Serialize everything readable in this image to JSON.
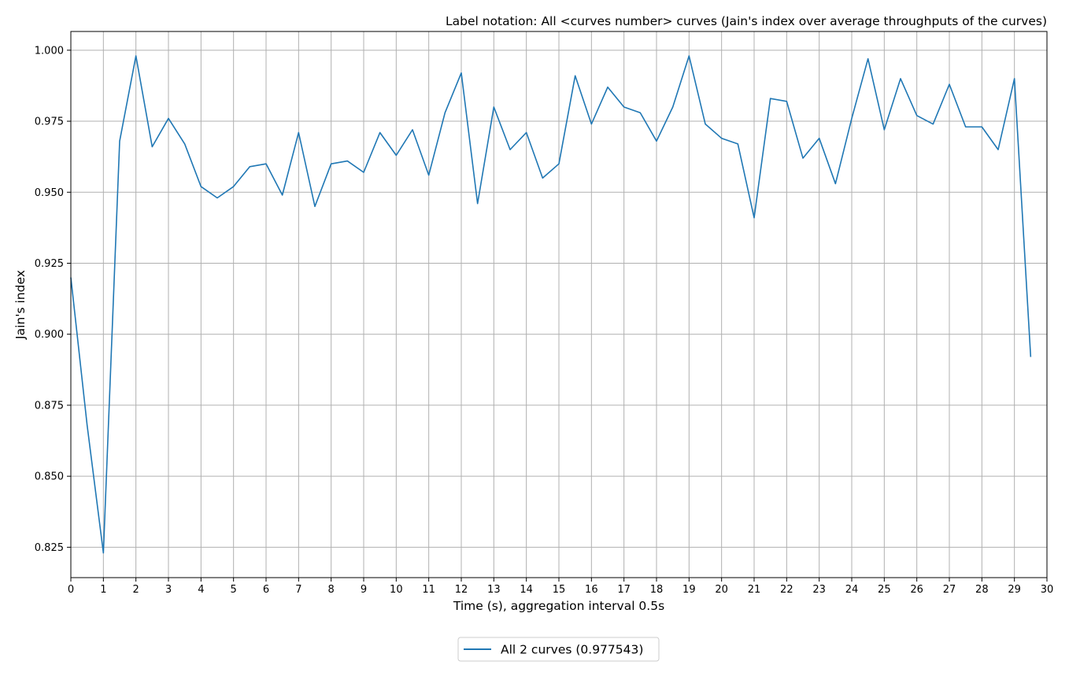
{
  "chart_data": {
    "type": "line",
    "title": "Label notation: All <curves number> curves (Jain's index over average throughputs of the curves)",
    "xlabel": "Time (s), aggregation interval 0.5s",
    "ylabel": "Jain's index",
    "xlim": [
      0,
      30
    ],
    "ylim": [
      0.8143,
      1.0066
    ],
    "x_ticks": [
      0,
      1,
      2,
      3,
      4,
      5,
      6,
      7,
      8,
      9,
      10,
      11,
      12,
      13,
      14,
      15,
      16,
      17,
      18,
      19,
      20,
      21,
      22,
      23,
      24,
      25,
      26,
      27,
      28,
      29,
      30
    ],
    "x_tick_labels": [
      "0",
      "1",
      "2",
      "3",
      "4",
      "5",
      "6",
      "7",
      "8",
      "9",
      "10",
      "11",
      "12",
      "13",
      "14",
      "15",
      "16",
      "17",
      "18",
      "19",
      "20",
      "21",
      "22",
      "23",
      "24",
      "25",
      "26",
      "27",
      "28",
      "29",
      "30"
    ],
    "y_ticks": [
      0.825,
      0.85,
      0.875,
      0.9,
      0.925,
      0.95,
      0.975,
      1.0
    ],
    "y_tick_labels": [
      "0.825",
      "0.850",
      "0.875",
      "0.900",
      "0.925",
      "0.950",
      "0.975",
      "1.000"
    ],
    "grid": true,
    "legend_position": "bottom-center",
    "series": [
      {
        "name": "All 2 curves (0.977543)",
        "color": "#1f77b4",
        "x": [
          0,
          0.5,
          1,
          1.5,
          2,
          2.5,
          3,
          3.5,
          4,
          4.5,
          5,
          5.5,
          6,
          6.5,
          7,
          7.5,
          8,
          8.5,
          9,
          9.5,
          10,
          10.5,
          11,
          11.5,
          12,
          12.5,
          13,
          13.5,
          14,
          14.5,
          15,
          15.5,
          16,
          16.5,
          17,
          17.5,
          18,
          18.5,
          19,
          19.5,
          20,
          20.5,
          21,
          21.5,
          22,
          22.5,
          23,
          23.5,
          24,
          24.5,
          25,
          25.5,
          26,
          26.5,
          27,
          27.5,
          28,
          28.5,
          29,
          29.5
        ],
        "y": [
          0.92,
          0.868,
          0.823,
          0.968,
          0.998,
          0.966,
          0.976,
          0.967,
          0.952,
          0.948,
          0.952,
          0.959,
          0.96,
          0.949,
          0.971,
          0.945,
          0.96,
          0.961,
          0.957,
          0.971,
          0.963,
          0.972,
          0.956,
          0.978,
          0.992,
          0.946,
          0.98,
          0.965,
          0.971,
          0.955,
          0.96,
          0.991,
          0.974,
          0.987,
          0.98,
          0.978,
          0.968,
          0.98,
          0.998,
          0.974,
          0.969,
          0.967,
          0.941,
          0.983,
          0.982,
          0.962,
          0.969,
          0.953,
          0.976,
          0.997,
          0.972,
          0.99,
          0.977,
          0.974,
          0.988,
          0.973,
          0.973,
          0.965,
          0.99,
          0.892
        ]
      }
    ]
  }
}
